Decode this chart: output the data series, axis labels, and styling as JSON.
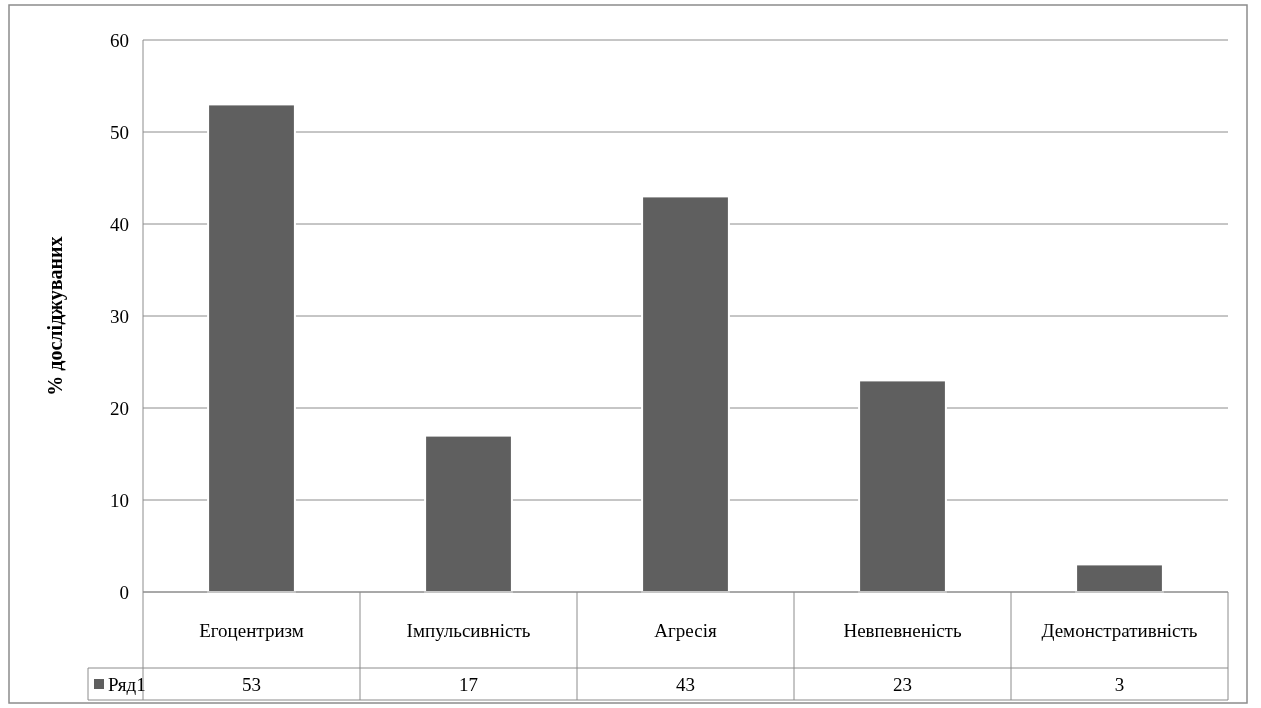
{
  "chart_data": {
    "type": "bar",
    "ylabel": "% досліджуваних",
    "categories": [
      "Егоцентризм",
      "Імпульсивність",
      "Агресія",
      "Невпевненість",
      "Демонстративність"
    ],
    "series": [
      {
        "name": "Ряд1",
        "color": "#5f5f5f",
        "values": [
          53,
          17,
          43,
          23,
          3
        ]
      }
    ],
    "ylim": [
      0,
      60
    ],
    "yticks": [
      0,
      10,
      20,
      30,
      40,
      50,
      60
    ],
    "grid": "y",
    "data_labels": true,
    "legend": "bottom"
  }
}
